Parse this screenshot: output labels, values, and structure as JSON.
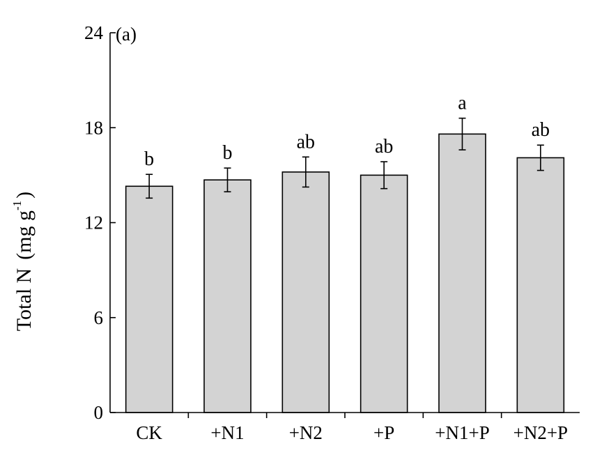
{
  "chart_data": {
    "type": "bar",
    "panel_label": "(a)",
    "ylabel": {
      "main": "Total N",
      "unit_open": "(mg g",
      "unit_sup": "-1",
      "unit_close": ")"
    },
    "xlabel": "",
    "ylim": [
      0,
      24
    ],
    "yticks": [
      0,
      6,
      12,
      18,
      24
    ],
    "categories": [
      "CK",
      "+N1",
      "+N2",
      "+P",
      "+N1+P",
      "+N2+P"
    ],
    "values": [
      14.3,
      14.7,
      15.2,
      15.0,
      17.6,
      16.1
    ],
    "errors": [
      0.75,
      0.75,
      0.95,
      0.85,
      1.0,
      0.8
    ],
    "significance": [
      "b",
      "b",
      "ab",
      "ab",
      "a",
      "ab"
    ],
    "colors": {
      "bar_fill": "#d3d3d3",
      "bar_stroke": "#000000",
      "axis": "#000000"
    },
    "grid": false,
    "legend": "none"
  }
}
